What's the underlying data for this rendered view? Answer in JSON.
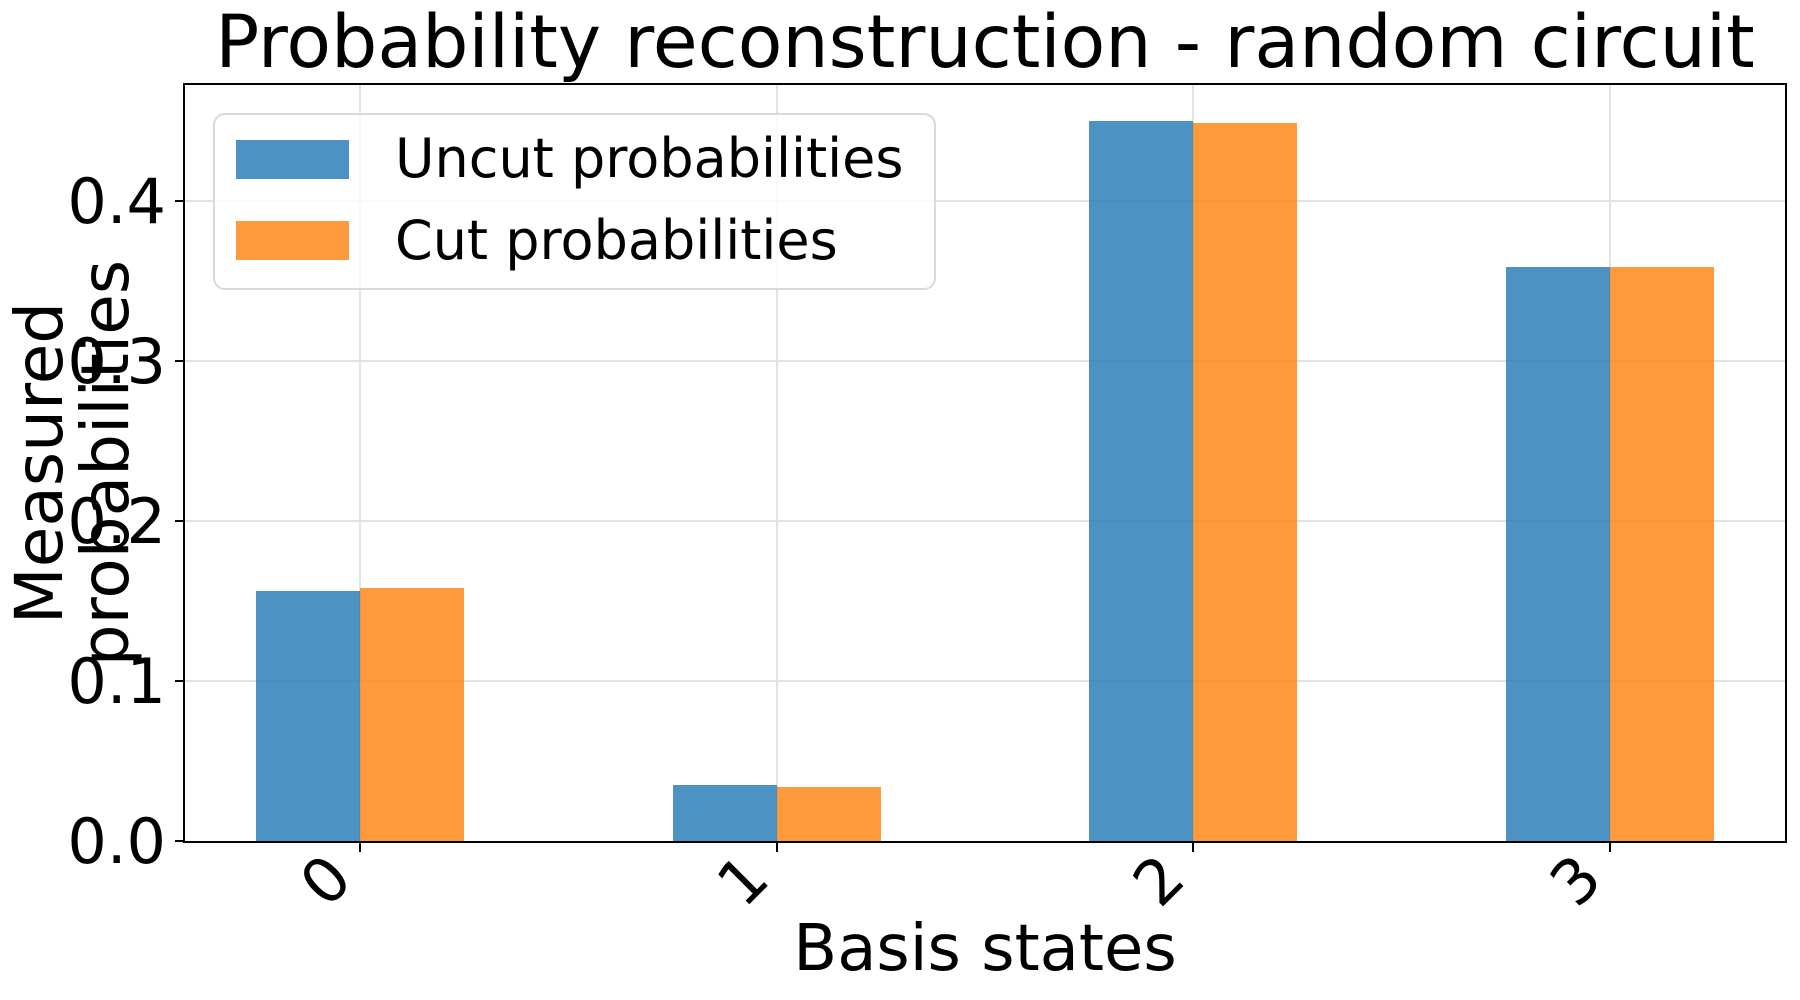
{
  "chart_data": {
    "type": "bar",
    "title": "Probability reconstruction - random circuit",
    "xlabel": "Basis states",
    "ylabel": "Measured probabilities",
    "categories": [
      "0",
      "1",
      "2",
      "3"
    ],
    "series": [
      {
        "name": "Uncut probabilities",
        "color": "#1f77b4",
        "fill_opacity": 0.8,
        "values": [
          0.156,
          0.035,
          0.45,
          0.359
        ]
      },
      {
        "name": "Cut probabilities",
        "color": "#ff7f0e",
        "fill_opacity": 0.8,
        "values": [
          0.158,
          0.034,
          0.449,
          0.359
        ]
      }
    ],
    "ylim": [
      0,
      0.4725
    ],
    "xlim": [
      -0.42,
      3.42
    ],
    "yticks": {
      "values": [
        0,
        0.1,
        0.2,
        0.3,
        0.4
      ],
      "labels": [
        "0.0",
        "0.1",
        "0.2",
        "0.3",
        "0.4"
      ]
    },
    "grid": true,
    "bar_width": 0.25,
    "x_tick_rotation": 45,
    "legend_position": "upper left"
  },
  "colors": {
    "grid": "#e2e2e2",
    "spine": "#000000",
    "text": "#000000",
    "legend_border": "#d9d9d9"
  }
}
